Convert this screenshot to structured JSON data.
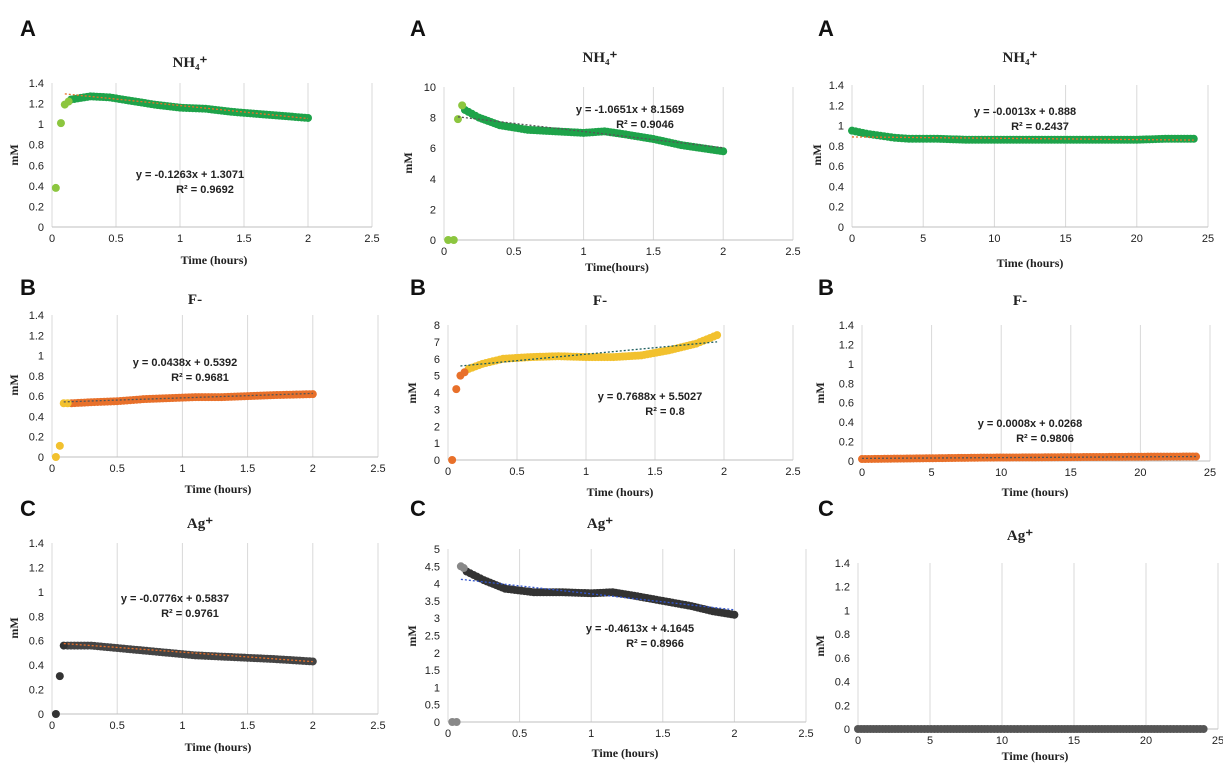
{
  "chart_data": [
    {
      "type": "scatter",
      "panel_letter": "A",
      "title": "NH₄⁺",
      "xlabel": "Time (hours)",
      "ylabel": "mM",
      "xlim": [
        0,
        2.5
      ],
      "ylim": [
        0,
        1.4
      ],
      "x_ticks": [
        "0",
        "0.5",
        "1",
        "1.5",
        "2",
        "2.5"
      ],
      "y_ticks": [
        "0",
        "0.2",
        "0.4",
        "0.6",
        "0.8",
        "1",
        "1.2",
        "1.4"
      ],
      "grid": "vertical",
      "equation": "y = -0.1263x + 1.3071",
      "r_squared": "R² = 0.9692",
      "point_color": "#1ea34a",
      "early_point_color": "#8cc63f",
      "trend_color": "#e8702a",
      "early_points": [
        [
          0.03,
          0.38
        ],
        [
          0.07,
          1.01
        ],
        [
          0.1,
          1.19
        ],
        [
          0.13,
          1.22
        ]
      ],
      "series_points": [
        [
          0.15,
          1.24
        ],
        [
          0.3,
          1.27
        ],
        [
          0.45,
          1.26
        ],
        [
          0.6,
          1.23
        ],
        [
          0.8,
          1.19
        ],
        [
          1.0,
          1.16
        ],
        [
          1.2,
          1.15
        ],
        [
          1.4,
          1.12
        ],
        [
          1.6,
          1.1
        ],
        [
          1.8,
          1.08
        ],
        [
          2.0,
          1.06
        ]
      ],
      "trendline": {
        "slope": -0.1263,
        "intercept": 1.3071
      }
    },
    {
      "type": "scatter",
      "panel_letter": "A",
      "title": "NH₄⁺",
      "xlabel": "Time(hours)",
      "ylabel": "mM",
      "xlim": [
        0,
        2.5
      ],
      "ylim": [
        0,
        10
      ],
      "x_ticks": [
        "0",
        "0.5",
        "1",
        "1.5",
        "2",
        "2.5"
      ],
      "y_ticks": [
        "0",
        "2",
        "4",
        "6",
        "8",
        "10"
      ],
      "grid": "vertical",
      "equation": "y = -1.0651x + 8.1569",
      "r_squared": "R² = 0.9046",
      "point_color": "#1ea34a",
      "early_point_color": "#8cc63f",
      "trend_color": "#555555",
      "early_points": [
        [
          0.03,
          0
        ],
        [
          0.07,
          0
        ],
        [
          0.1,
          7.9
        ],
        [
          0.13,
          8.8
        ]
      ],
      "series_points": [
        [
          0.15,
          8.5
        ],
        [
          0.25,
          8.0
        ],
        [
          0.4,
          7.5
        ],
        [
          0.6,
          7.2
        ],
        [
          0.8,
          7.1
        ],
        [
          1.0,
          7.0
        ],
        [
          1.15,
          7.1
        ],
        [
          1.3,
          6.9
        ],
        [
          1.5,
          6.6
        ],
        [
          1.7,
          6.2
        ],
        [
          1.85,
          6.0
        ],
        [
          2.0,
          5.8
        ]
      ],
      "trendline": {
        "slope": -1.0651,
        "intercept": 8.1569
      }
    },
    {
      "type": "scatter",
      "panel_letter": "A",
      "title": "NH₄⁺",
      "xlabel": "Time (hours)",
      "ylabel": "mM",
      "xlim": [
        0,
        25
      ],
      "ylim": [
        0,
        1.4
      ],
      "x_ticks": [
        "0",
        "5",
        "10",
        "15",
        "20",
        "25"
      ],
      "y_ticks": [
        "0",
        "0.2",
        "0.4",
        "0.6",
        "0.8",
        "1",
        "1.2",
        "1.4"
      ],
      "grid": "vertical",
      "equation": "y = -0.0013x + 0.888",
      "r_squared": "R² = 0.2437",
      "point_color": "#1ea34a",
      "early_point_color": "#1ea34a",
      "trend_color": "#e8702a",
      "early_points": [],
      "series_points": [
        [
          0,
          0.95
        ],
        [
          1,
          0.92
        ],
        [
          2,
          0.9
        ],
        [
          3,
          0.88
        ],
        [
          4,
          0.87
        ],
        [
          5,
          0.87
        ],
        [
          6,
          0.87
        ],
        [
          8,
          0.86
        ],
        [
          10,
          0.86
        ],
        [
          12,
          0.86
        ],
        [
          14,
          0.86
        ],
        [
          16,
          0.86
        ],
        [
          18,
          0.86
        ],
        [
          20,
          0.86
        ],
        [
          22,
          0.87
        ],
        [
          24,
          0.87
        ]
      ],
      "trendline": {
        "slope": -0.0013,
        "intercept": 0.888
      }
    },
    {
      "type": "scatter",
      "panel_letter": "B",
      "title": "F-",
      "xlabel": "Time (hours)",
      "ylabel": "mM",
      "xlim": [
        0,
        2.5
      ],
      "ylim": [
        0,
        1.4
      ],
      "x_ticks": [
        "0",
        "0.5",
        "1",
        "1.5",
        "2",
        "2.5"
      ],
      "y_ticks": [
        "0",
        "0.2",
        "0.4",
        "0.6",
        "0.8",
        "1",
        "1.2",
        "1.4"
      ],
      "grid": "vertical",
      "equation": "y = 0.0438x + 0.5392",
      "r_squared": "R² = 0.9681",
      "point_color": "#e8702a",
      "early_point_color": "#f2c12e",
      "trend_color": "#555555",
      "early_points": [
        [
          0.03,
          0
        ],
        [
          0.06,
          0.11
        ],
        [
          0.09,
          0.53
        ],
        [
          0.12,
          0.53
        ]
      ],
      "series_points": [
        [
          0.15,
          0.53
        ],
        [
          0.3,
          0.54
        ],
        [
          0.5,
          0.55
        ],
        [
          0.7,
          0.57
        ],
        [
          0.9,
          0.58
        ],
        [
          1.1,
          0.59
        ],
        [
          1.3,
          0.59
        ],
        [
          1.5,
          0.6
        ],
        [
          1.7,
          0.61
        ],
        [
          2.0,
          0.62
        ]
      ],
      "trendline": {
        "slope": 0.0438,
        "intercept": 0.5392
      }
    },
    {
      "type": "scatter",
      "panel_letter": "B",
      "title": "F-",
      "xlabel": "Time (hours)",
      "ylabel": "mM",
      "xlim": [
        0,
        2.5
      ],
      "ylim": [
        0,
        8
      ],
      "x_ticks": [
        "0",
        "0.5",
        "1",
        "1.5",
        "2",
        "2.5"
      ],
      "y_ticks": [
        "0",
        "1",
        "2",
        "3",
        "4",
        "5",
        "6",
        "7",
        "8"
      ],
      "grid": "vertical",
      "equation": "y = 0.7688x + 5.5027",
      "r_squared": "R² = 0.8",
      "point_color": "#f2c12e",
      "early_point_color": "#e8702a",
      "trend_color": "#1f5f5f",
      "early_points": [
        [
          0.03,
          0
        ],
        [
          0.06,
          4.2
        ],
        [
          0.09,
          5.0
        ],
        [
          0.12,
          5.2
        ]
      ],
      "series_points": [
        [
          0.15,
          5.4
        ],
        [
          0.25,
          5.7
        ],
        [
          0.4,
          6.0
        ],
        [
          0.6,
          6.1
        ],
        [
          0.8,
          6.15
        ],
        [
          1.0,
          6.1
        ],
        [
          1.2,
          6.1
        ],
        [
          1.4,
          6.2
        ],
        [
          1.6,
          6.5
        ],
        [
          1.8,
          6.9
        ],
        [
          1.95,
          7.4
        ]
      ],
      "trendline": {
        "slope": 0.7688,
        "intercept": 5.5027
      }
    },
    {
      "type": "scatter",
      "panel_letter": "B",
      "title": "F-",
      "xlabel": "Time (hours)",
      "ylabel": "mM",
      "xlim": [
        0,
        25
      ],
      "ylim": [
        0,
        1.4
      ],
      "x_ticks": [
        "0",
        "5",
        "10",
        "15",
        "20",
        "25"
      ],
      "y_ticks": [
        "0",
        "0.2",
        "0.4",
        "0.6",
        "0.8",
        "1",
        "1.2",
        "1.4"
      ],
      "grid": "vertical",
      "equation": "y = 0.0008x + 0.0268",
      "r_squared": "R² = 0.9806",
      "point_color": "#e8702a",
      "early_point_color": "#e8702a",
      "trend_color": "#555555",
      "early_points": [],
      "series_points": [
        [
          0,
          0.02
        ],
        [
          3,
          0.025
        ],
        [
          6,
          0.03
        ],
        [
          9,
          0.035
        ],
        [
          12,
          0.037
        ],
        [
          15,
          0.04
        ],
        [
          18,
          0.042
        ],
        [
          21,
          0.045
        ],
        [
          24,
          0.046
        ]
      ],
      "trendline": {
        "slope": 0.0008,
        "intercept": 0.0268
      }
    },
    {
      "type": "scatter",
      "panel_letter": "C",
      "title": "Ag⁺",
      "xlabel": "Time (hours)",
      "ylabel": "mM",
      "xlim": [
        0,
        2.5
      ],
      "ylim": [
        0,
        1.4
      ],
      "x_ticks": [
        "0",
        "0.5",
        "1",
        "1.5",
        "2",
        "2.5"
      ],
      "y_ticks": [
        "0",
        "0.2",
        "0.4",
        "0.6",
        "0.8",
        "1",
        "1.2",
        "1.4"
      ],
      "grid": "vertical",
      "equation": "y = -0.0776x + 0.5837",
      "r_squared": "R² = 0.9761",
      "point_color": "#444444",
      "early_point_color": "#333333",
      "trend_color": "#e8702a",
      "early_points": [
        [
          0.03,
          0
        ],
        [
          0.06,
          0.31
        ],
        [
          0.09,
          0.56
        ]
      ],
      "series_points": [
        [
          0.12,
          0.56
        ],
        [
          0.3,
          0.56
        ],
        [
          0.5,
          0.54
        ],
        [
          0.7,
          0.52
        ],
        [
          0.9,
          0.5
        ],
        [
          1.1,
          0.48
        ],
        [
          1.3,
          0.47
        ],
        [
          1.5,
          0.46
        ],
        [
          1.7,
          0.45
        ],
        [
          2.0,
          0.43
        ]
      ],
      "trendline": {
        "slope": -0.0776,
        "intercept": 0.5837
      }
    },
    {
      "type": "scatter",
      "panel_letter": "C",
      "title": "Ag⁺",
      "xlabel": "Time (hours)",
      "ylabel": "mM",
      "xlim": [
        0,
        2.5
      ],
      "ylim": [
        0,
        5
      ],
      "x_ticks": [
        "0",
        "0.5",
        "1",
        "1.5",
        "2",
        "2.5"
      ],
      "y_ticks": [
        "0",
        "0.5",
        "1",
        "1.5",
        "2",
        "2.5",
        "3",
        "3.5",
        "4",
        "4.5",
        "5"
      ],
      "grid": "vertical",
      "equation": "y = -0.4613x + 4.1645",
      "r_squared": "R² = 0.8966",
      "point_color": "#333333",
      "early_point_color": "#888888",
      "trend_color": "#3355cc",
      "early_points": [
        [
          0.03,
          0
        ],
        [
          0.06,
          0
        ],
        [
          0.09,
          4.5
        ],
        [
          0.11,
          4.45
        ]
      ],
      "series_points": [
        [
          0.13,
          4.35
        ],
        [
          0.25,
          4.1
        ],
        [
          0.4,
          3.85
        ],
        [
          0.6,
          3.75
        ],
        [
          0.8,
          3.75
        ],
        [
          1.0,
          3.72
        ],
        [
          1.15,
          3.75
        ],
        [
          1.3,
          3.65
        ],
        [
          1.5,
          3.5
        ],
        [
          1.7,
          3.35
        ],
        [
          1.85,
          3.2
        ],
        [
          2.0,
          3.1
        ]
      ],
      "trendline": {
        "slope": -0.4613,
        "intercept": 4.1645
      }
    },
    {
      "type": "scatter",
      "panel_letter": "C",
      "title": "Ag⁺",
      "xlabel": "Time (hours)",
      "ylabel": "mM",
      "xlim": [
        0,
        25
      ],
      "ylim": [
        0,
        1.4
      ],
      "x_ticks": [
        "0",
        "5",
        "10",
        "15",
        "20",
        "25"
      ],
      "y_ticks": [
        "0",
        "0.2",
        "0.4",
        "0.6",
        "0.8",
        "1",
        "1.2",
        "1.4"
      ],
      "grid": "vertical",
      "equation": "",
      "r_squared": "",
      "point_color": "#555555",
      "early_point_color": "#555555",
      "trend_color": "#555555",
      "early_points": [],
      "series_points": [
        [
          0,
          0
        ],
        [
          3,
          0
        ],
        [
          6,
          0
        ],
        [
          9,
          0
        ],
        [
          12,
          0
        ],
        [
          15,
          0
        ],
        [
          18,
          0
        ],
        [
          21,
          0
        ],
        [
          24,
          0
        ]
      ],
      "trendline": null
    }
  ]
}
